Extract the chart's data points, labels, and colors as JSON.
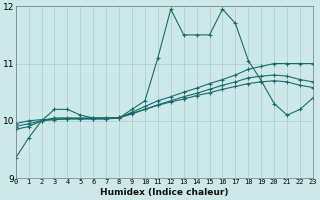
{
  "xlabel": "Humidex (Indice chaleur)",
  "xlim": [
    0,
    23
  ],
  "ylim": [
    9,
    12
  ],
  "yticks": [
    9,
    10,
    11,
    12
  ],
  "xticks": [
    0,
    1,
    2,
    3,
    4,
    5,
    6,
    7,
    8,
    9,
    10,
    11,
    12,
    13,
    14,
    15,
    16,
    17,
    18,
    19,
    20,
    21,
    22,
    23
  ],
  "bg_color": "#cde8e8",
  "grid_color": "#aacccc",
  "line_color": "#1a6b6b",
  "lines": [
    {
      "x": [
        0,
        1,
        2,
        3,
        4,
        5,
        6,
        7,
        8,
        9,
        10,
        11,
        12,
        13,
        14,
        15,
        16,
        17,
        18,
        19,
        20,
        21,
        22,
        23
      ],
      "y": [
        9.35,
        9.7,
        10.0,
        10.2,
        10.2,
        10.1,
        10.05,
        10.05,
        10.05,
        10.2,
        10.35,
        11.1,
        11.95,
        11.5,
        11.5,
        11.5,
        11.95,
        11.7,
        11.05,
        10.7,
        10.3,
        10.1,
        10.2,
        10.4
      ]
    },
    {
      "x": [
        0,
        1,
        2,
        3,
        4,
        5,
        6,
        7,
        8,
        9,
        10,
        11,
        12,
        13,
        14,
        15,
        16,
        17,
        18,
        19,
        20,
        21,
        22,
        23
      ],
      "y": [
        9.85,
        9.9,
        10.0,
        10.05,
        10.05,
        10.05,
        10.05,
        10.05,
        10.05,
        10.15,
        10.25,
        10.35,
        10.42,
        10.5,
        10.57,
        10.65,
        10.72,
        10.8,
        10.9,
        10.95,
        11.0,
        11.0,
        11.0,
        11.0
      ]
    },
    {
      "x": [
        0,
        1,
        2,
        3,
        4,
        5,
        6,
        7,
        8,
        9,
        10,
        11,
        12,
        13,
        14,
        15,
        16,
        17,
        18,
        19,
        20,
        21,
        22,
        23
      ],
      "y": [
        9.9,
        9.95,
        10.0,
        10.02,
        10.03,
        10.03,
        10.03,
        10.03,
        10.05,
        10.12,
        10.2,
        10.28,
        10.35,
        10.42,
        10.48,
        10.55,
        10.62,
        10.68,
        10.75,
        10.78,
        10.8,
        10.78,
        10.72,
        10.68
      ]
    },
    {
      "x": [
        0,
        1,
        2,
        3,
        4,
        5,
        6,
        7,
        8,
        9,
        10,
        11,
        12,
        13,
        14,
        15,
        16,
        17,
        18,
        19,
        20,
        21,
        22,
        23
      ],
      "y": [
        9.95,
        10.0,
        10.02,
        10.03,
        10.04,
        10.04,
        10.04,
        10.04,
        10.06,
        10.13,
        10.2,
        10.27,
        10.33,
        10.38,
        10.44,
        10.49,
        10.55,
        10.6,
        10.65,
        10.68,
        10.7,
        10.68,
        10.62,
        10.58
      ]
    }
  ]
}
